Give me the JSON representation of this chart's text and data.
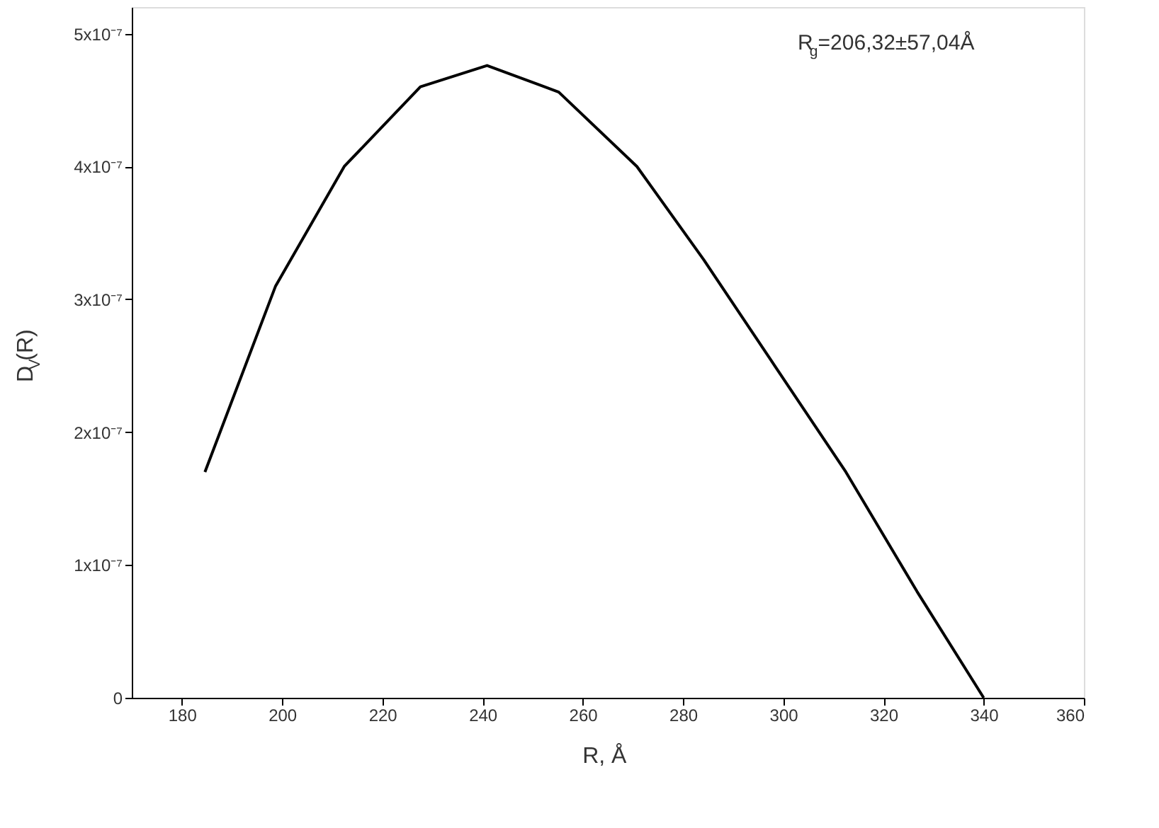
{
  "chart_data": {
    "type": "line",
    "xlabel": "R, Å",
    "ylabel": "D$_{V}$(R)",
    "annotations": [
      "R$_{g}$=206,32±57,04Å"
    ],
    "x": [
      184.6,
      198.7,
      212.4,
      227.6,
      240.9,
      255.2,
      270.8,
      284.1,
      298.3,
      312.5,
      326.7,
      340
    ],
    "series": [
      {
        "color": "#000000",
        "values": [
          1.7e-07,
          3.1e-07,
          4e-07,
          4.6e-07,
          4.76e-07,
          4.56e-07,
          4e-07,
          3.3e-07,
          2.5e-07,
          1.7e-07,
          8e-08,
          0
        ]
      }
    ],
    "xlim": [
      170,
      360
    ],
    "xticks": [
      180,
      200,
      220,
      240,
      260,
      280,
      300,
      320,
      340,
      360
    ],
    "ylim": [
      0,
      5.2e-07
    ],
    "yticks": [
      0,
      {
        "value": 1e-07,
        "label": "1x10⁻⁷"
      },
      {
        "value": 2e-07,
        "label": "2x10⁻⁷"
      },
      {
        "value": 3e-07,
        "label": "3x10⁻⁷"
      },
      {
        "value": 4e-07,
        "label": "4x10⁻⁷"
      },
      {
        "value": 5e-07,
        "label": "5x10⁻⁷"
      }
    ],
    "grid": false,
    "marker": "none",
    "line_style": "solid"
  }
}
